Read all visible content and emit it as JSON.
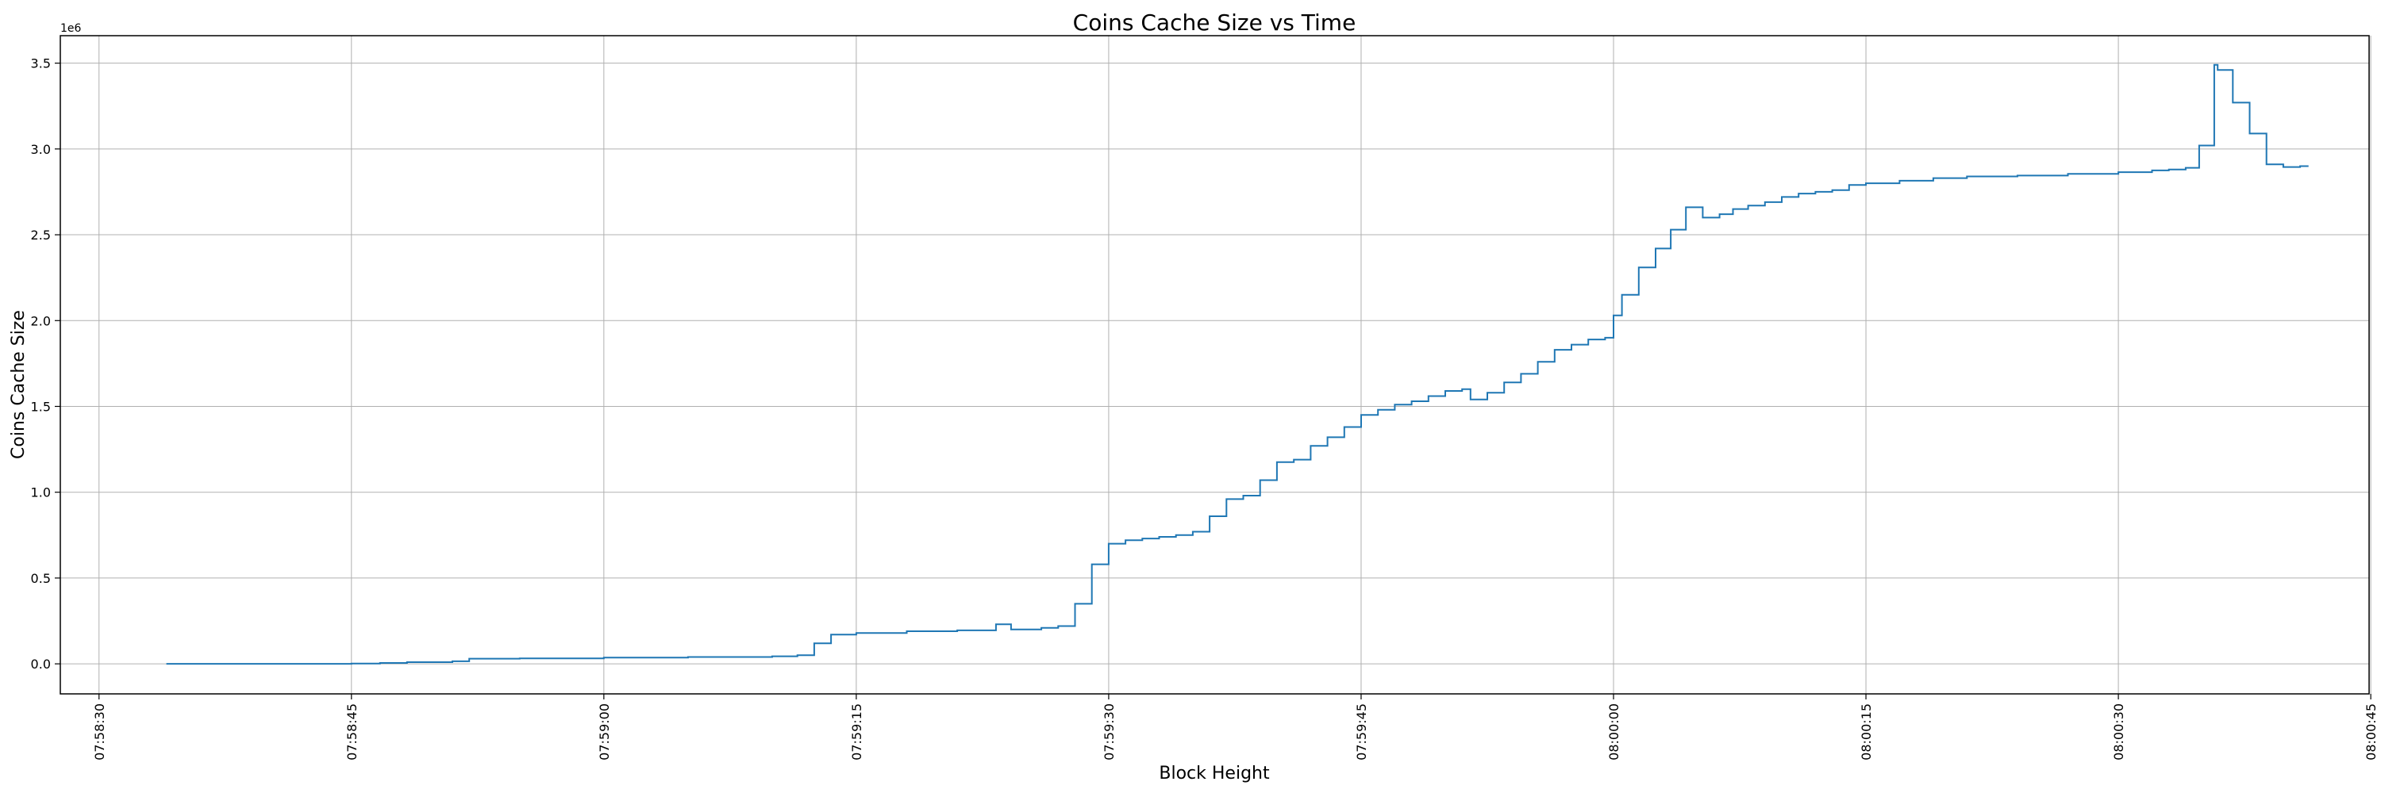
{
  "chart_data": {
    "type": "line",
    "title": "Coins Cache Size vs Time",
    "xlabel": "Block Height",
    "ylabel": "Coins Cache Size",
    "y_multiplier_label": "1e6",
    "x_tick_labels": [
      "07:58:30",
      "07:58:45",
      "07:59:00",
      "07:59:15",
      "07:59:30",
      "07:59:45",
      "08:00:00",
      "08:00:15",
      "08:00:30",
      "08:00:45"
    ],
    "x_tick_seconds": [
      -90,
      -75,
      -60,
      -45,
      -30,
      -15,
      0,
      15,
      30,
      45
    ],
    "xlim": [
      -92.3,
      44.9
    ],
    "ylim": [
      -0.175,
      3.66
    ],
    "y_ticks": [
      0.0,
      0.5,
      1.0,
      1.5,
      2.0,
      2.5,
      3.0,
      3.5
    ],
    "y_tick_labels": [
      "0.0",
      "0.5",
      "1.0",
      "1.5",
      "2.0",
      "2.5",
      "3.0",
      "3.5"
    ],
    "grid": true,
    "line_color": "#1f77b4",
    "x_rotation": 90,
    "series": [
      {
        "step": "post",
        "points": [
          [
            -86.0,
            0.0
          ],
          [
            -75.0,
            0.002
          ],
          [
            -73.3,
            0.005
          ],
          [
            -71.7,
            0.01
          ],
          [
            -69.0,
            0.015
          ],
          [
            -68.0,
            0.03
          ],
          [
            -65.0,
            0.032
          ],
          [
            -60.0,
            0.036
          ],
          [
            -55.0,
            0.04
          ],
          [
            -50.0,
            0.044
          ],
          [
            -48.5,
            0.05
          ],
          [
            -47.5,
            0.12
          ],
          [
            -46.5,
            0.17
          ],
          [
            -45.0,
            0.18
          ],
          [
            -42.0,
            0.19
          ],
          [
            -39.0,
            0.195
          ],
          [
            -36.7,
            0.23
          ],
          [
            -35.8,
            0.2
          ],
          [
            -34.0,
            0.21
          ],
          [
            -33.0,
            0.22
          ],
          [
            -32.0,
            0.35
          ],
          [
            -31.0,
            0.58
          ],
          [
            -30.0,
            0.7
          ],
          [
            -29.0,
            0.72
          ],
          [
            -28.0,
            0.73
          ],
          [
            -27.0,
            0.74
          ],
          [
            -26.0,
            0.75
          ],
          [
            -25.0,
            0.77
          ],
          [
            -24.0,
            0.86
          ],
          [
            -23.0,
            0.96
          ],
          [
            -22.0,
            0.98
          ],
          [
            -21.0,
            1.07
          ],
          [
            -20.0,
            1.175
          ],
          [
            -19.0,
            1.19
          ],
          [
            -18.0,
            1.27
          ],
          [
            -17.0,
            1.32
          ],
          [
            -16.0,
            1.38
          ],
          [
            -15.0,
            1.45
          ],
          [
            -14.0,
            1.48
          ],
          [
            -13.0,
            1.51
          ],
          [
            -12.0,
            1.53
          ],
          [
            -11.0,
            1.56
          ],
          [
            -10.0,
            1.59
          ],
          [
            -9.0,
            1.6
          ],
          [
            -8.5,
            1.54
          ],
          [
            -7.5,
            1.58
          ],
          [
            -6.5,
            1.64
          ],
          [
            -5.5,
            1.69
          ],
          [
            -4.5,
            1.76
          ],
          [
            -3.5,
            1.83
          ],
          [
            -2.5,
            1.86
          ],
          [
            -1.5,
            1.89
          ],
          [
            -0.5,
            1.9
          ],
          [
            0.0,
            2.03
          ],
          [
            0.5,
            2.15
          ],
          [
            1.5,
            2.31
          ],
          [
            2.5,
            2.42
          ],
          [
            3.4,
            2.53
          ],
          [
            4.3,
            2.66
          ],
          [
            5.3,
            2.6
          ],
          [
            6.3,
            2.62
          ],
          [
            7.1,
            2.65
          ],
          [
            8.0,
            2.67
          ],
          [
            9.0,
            2.69
          ],
          [
            10.0,
            2.72
          ],
          [
            11.0,
            2.74
          ],
          [
            12.0,
            2.75
          ],
          [
            13.0,
            2.76
          ],
          [
            14.0,
            2.79
          ],
          [
            15.0,
            2.8
          ],
          [
            17.0,
            2.815
          ],
          [
            19.0,
            2.83
          ],
          [
            21.0,
            2.84
          ],
          [
            24.0,
            2.845
          ],
          [
            27.0,
            2.855
          ],
          [
            30.0,
            2.865
          ],
          [
            32.0,
            2.875
          ],
          [
            33.0,
            2.88
          ],
          [
            34.0,
            2.89
          ],
          [
            34.8,
            3.02
          ],
          [
            35.7,
            3.49
          ],
          [
            35.9,
            3.46
          ],
          [
            36.8,
            3.27
          ],
          [
            37.8,
            3.09
          ],
          [
            38.8,
            2.91
          ],
          [
            39.8,
            2.895
          ],
          [
            40.3,
            2.895
          ],
          [
            40.8,
            2.9
          ],
          [
            41.3,
            2.9
          ]
        ]
      }
    ]
  }
}
